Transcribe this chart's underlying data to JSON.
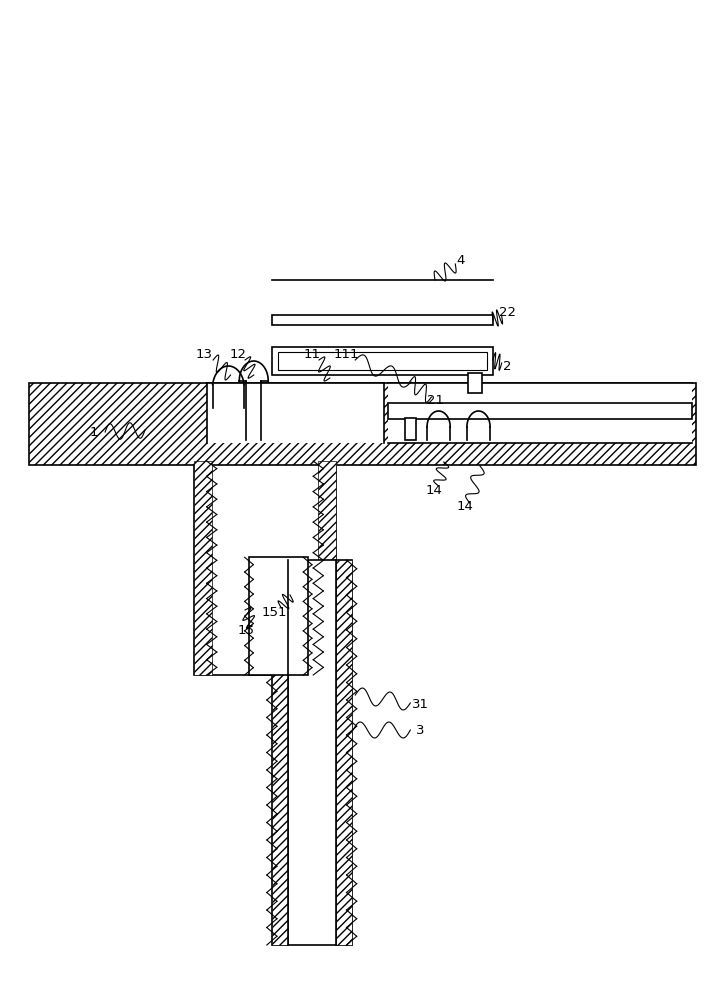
{
  "bg_color": "#ffffff",
  "line_color": "#000000",
  "hatch_color": "#000000",
  "line_width": 1.2,
  "thin_line": 0.8
}
